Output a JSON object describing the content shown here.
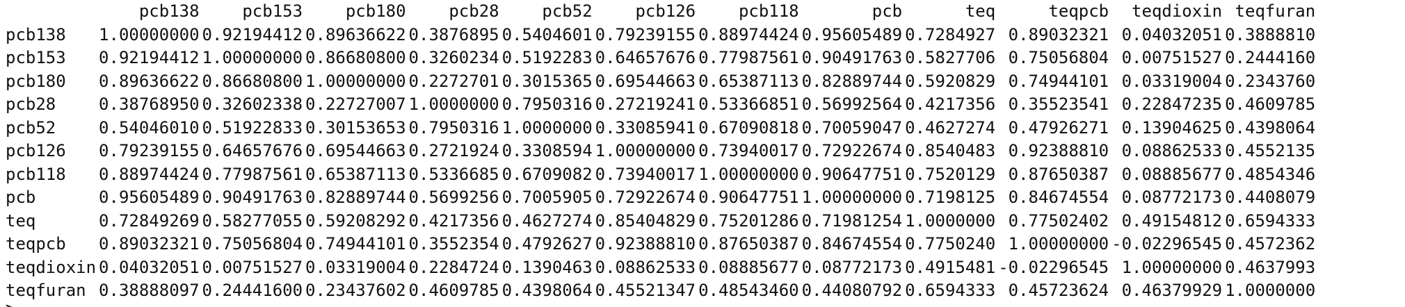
{
  "matrix": {
    "columns": [
      "pcb138",
      "pcb153",
      "pcb180",
      "pcb28",
      "pcb52",
      "pcb126",
      "pcb118",
      "pcb",
      "teq",
      "teqpcb",
      "teqdioxin",
      "teqfuran"
    ],
    "rows": [
      {
        "name": "pcb138",
        "values": [
          "1.00000000",
          "0.92194412",
          "0.89636622",
          "0.3876895",
          "0.5404601",
          "0.79239155",
          "0.88974424",
          "0.95605489",
          "0.7284927",
          "0.89032321",
          "0.04032051",
          "0.3888810"
        ]
      },
      {
        "name": "pcb153",
        "values": [
          "0.92194412",
          "1.00000000",
          "0.86680800",
          "0.3260234",
          "0.5192283",
          "0.64657676",
          "0.77987561",
          "0.90491763",
          "0.5827706",
          "0.75056804",
          "0.00751527",
          "0.2444160"
        ]
      },
      {
        "name": "pcb180",
        "values": [
          "0.89636622",
          "0.86680800",
          "1.00000000",
          "0.2272701",
          "0.3015365",
          "0.69544663",
          "0.65387113",
          "0.82889744",
          "0.5920829",
          "0.74944101",
          "0.03319004",
          "0.2343760"
        ]
      },
      {
        "name": "pcb28",
        "values": [
          "0.38768950",
          "0.32602338",
          "0.22727007",
          "1.0000000",
          "0.7950316",
          "0.27219241",
          "0.53366851",
          "0.56992564",
          "0.4217356",
          "0.35523541",
          "0.22847235",
          "0.4609785"
        ]
      },
      {
        "name": "pcb52",
        "values": [
          "0.54046010",
          "0.51922833",
          "0.30153653",
          "0.7950316",
          "1.0000000",
          "0.33085941",
          "0.67090818",
          "0.70059047",
          "0.4627274",
          "0.47926271",
          "0.13904625",
          "0.4398064"
        ]
      },
      {
        "name": "pcb126",
        "values": [
          "0.79239155",
          "0.64657676",
          "0.69544663",
          "0.2721924",
          "0.3308594",
          "1.00000000",
          "0.73940017",
          "0.72922674",
          "0.8540483",
          "0.92388810",
          "0.08862533",
          "0.4552135"
        ]
      },
      {
        "name": "pcb118",
        "values": [
          "0.88974424",
          "0.77987561",
          "0.65387113",
          "0.5336685",
          "0.6709082",
          "0.73940017",
          "1.00000000",
          "0.90647751",
          "0.7520129",
          "0.87650387",
          "0.08885677",
          "0.4854346"
        ]
      },
      {
        "name": "pcb",
        "values": [
          "0.95605489",
          "0.90491763",
          "0.82889744",
          "0.5699256",
          "0.7005905",
          "0.72922674",
          "0.90647751",
          "1.00000000",
          "0.7198125",
          "0.84674554",
          "0.08772173",
          "0.4408079"
        ]
      },
      {
        "name": "teq",
        "values": [
          "0.72849269",
          "0.58277055",
          "0.59208292",
          "0.4217356",
          "0.4627274",
          "0.85404829",
          "0.75201286",
          "0.71981254",
          "1.0000000",
          "0.77502402",
          "0.49154812",
          "0.6594333"
        ]
      },
      {
        "name": "teqpcb",
        "values": [
          "0.89032321",
          "0.75056804",
          "0.74944101",
          "0.3552354",
          "0.4792627",
          "0.92388810",
          "0.87650387",
          "0.84674554",
          "0.7750240",
          "1.00000000",
          "-0.02296545",
          "0.4572362"
        ]
      },
      {
        "name": "teqdioxin",
        "values": [
          "0.04032051",
          "0.00751527",
          "0.03319004",
          "0.2284724",
          "0.1390463",
          "0.08862533",
          "0.08885677",
          "0.08772173",
          "0.4915481",
          "-0.02296545",
          "1.00000000",
          "0.4637993"
        ]
      },
      {
        "name": "teqfuran",
        "values": [
          "0.38888097",
          "0.24441600",
          "0.23437602",
          "0.4609785",
          "0.4398064",
          "0.45521347",
          "0.48543460",
          "0.44080792",
          "0.6594333",
          "0.45723624",
          "0.46379929",
          "1.0000000"
        ]
      }
    ]
  },
  "console": {
    "prompt": ">"
  }
}
